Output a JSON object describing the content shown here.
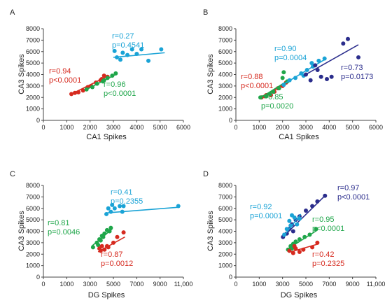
{
  "colors": {
    "red": "#d62a1f",
    "green": "#1fa64a",
    "cyan": "#1aa3d6",
    "navy": "#2b2d8c",
    "axis": "#444444"
  },
  "chart_data": [
    {
      "panel": "A",
      "type": "scatter",
      "xlabel": "CA1 Spikes",
      "ylabel": "CA3 Spikes",
      "xlim": [
        0,
        6000
      ],
      "ylim": [
        0,
        8000
      ],
      "xticks": [
        "0",
        "1000",
        "2000",
        "3000",
        "4000",
        "5000",
        "6000"
      ],
      "yticks": [
        "0",
        "1000",
        "2000",
        "3000",
        "4000",
        "5000",
        "6000",
        "7000",
        "8000"
      ],
      "series": [
        {
          "color": "red",
          "points": [
            [
              1200,
              2300
            ],
            [
              1350,
              2400
            ],
            [
              1500,
              2450
            ],
            [
              1700,
              2600
            ],
            [
              1900,
              2900
            ],
            [
              2050,
              3000
            ],
            [
              2250,
              3300
            ],
            [
              2500,
              3600
            ],
            [
              2600,
              3900
            ],
            [
              2750,
              3800
            ],
            [
              2450,
              3500
            ]
          ],
          "fit": [
            [
              1150,
              2250
            ],
            [
              2800,
              3900
            ]
          ],
          "r": "r=0.94",
          "p": "p<0.0001"
        },
        {
          "color": "green",
          "points": [
            [
              1850,
              2700
            ],
            [
              2100,
              2900
            ],
            [
              2300,
              3200
            ],
            [
              2550,
              3400
            ],
            [
              2750,
              3700
            ],
            [
              2950,
              3900
            ],
            [
              3100,
              4100
            ],
            [
              2600,
              3500
            ]
          ],
          "fit": [
            [
              1800,
              2650
            ],
            [
              3150,
              4050
            ]
          ],
          "r": "r=0.96",
          "p": "p<0.0001"
        },
        {
          "color": "cyan",
          "points": [
            [
              3050,
              6050
            ],
            [
              3300,
              5300
            ],
            [
              3600,
              5700
            ],
            [
              3800,
              6200
            ],
            [
              4000,
              5800
            ],
            [
              4200,
              6200
            ],
            [
              4500,
              5200
            ],
            [
              5050,
              6200
            ],
            [
              3400,
              5900
            ],
            [
              3150,
              5500
            ]
          ],
          "fit": [
            [
              3000,
              5500
            ],
            [
              5200,
              5900
            ]
          ],
          "r": "r=0.27",
          "p": "p=0.4541"
        }
      ]
    },
    {
      "panel": "B",
      "type": "scatter",
      "xlabel": "CA1 Spikes",
      "ylabel": "CA3 Spikes",
      "xlim": [
        0,
        6000
      ],
      "ylim": [
        0,
        8000
      ],
      "xticks": [
        "0",
        "1000",
        "2000",
        "3000",
        "4000",
        "5000",
        "6000"
      ],
      "yticks": [
        "0",
        "1000",
        "2000",
        "3000",
        "4000",
        "5000",
        "6000",
        "7000",
        "8000"
      ],
      "series": [
        {
          "color": "red",
          "points": [
            [
              1100,
              2000
            ],
            [
              1300,
              2200
            ],
            [
              1500,
              2200
            ],
            [
              1650,
              2500
            ],
            [
              1800,
              2800
            ],
            [
              2000,
              3000
            ],
            [
              2150,
              3300
            ],
            [
              1250,
              2100
            ]
          ],
          "fit": [
            [
              1050,
              1950
            ],
            [
              2200,
              3300
            ]
          ],
          "r": "r=0.88",
          "p": "p<0.0001"
        },
        {
          "color": "green",
          "points": [
            [
              1050,
              2000
            ],
            [
              1300,
              2100
            ],
            [
              1600,
              2500
            ],
            [
              2000,
              3700
            ],
            [
              2050,
              4200
            ],
            [
              2200,
              3400
            ],
            [
              1850,
              2800
            ],
            [
              1450,
              2300
            ]
          ],
          "fit": [
            [
              1000,
              1900
            ],
            [
              2250,
              3500
            ]
          ],
          "r": "r=0.85",
          "p": "p=0.0020"
        },
        {
          "color": "cyan",
          "points": [
            [
              2050,
              3100
            ],
            [
              2300,
              3500
            ],
            [
              2550,
              3700
            ],
            [
              2800,
              4100
            ],
            [
              3050,
              4400
            ],
            [
              3300,
              4700
            ],
            [
              3550,
              5200
            ],
            [
              3800,
              5400
            ],
            [
              3250,
              5000
            ],
            [
              2900,
              3900
            ]
          ],
          "fit": [
            [
              2000,
              3100
            ],
            [
              3800,
              5300
            ]
          ],
          "r": "r=0.90",
          "p": "p=0.0004"
        },
        {
          "color": "navy",
          "points": [
            [
              3000,
              4000
            ],
            [
              3200,
              3500
            ],
            [
              3400,
              4800
            ],
            [
              3650,
              3800
            ],
            [
              3900,
              3600
            ],
            [
              4100,
              3800
            ],
            [
              4600,
              6700
            ],
            [
              4800,
              7100
            ],
            [
              5250,
              5500
            ],
            [
              3500,
              4400
            ]
          ],
          "fit": [
            [
              2900,
              3900
            ],
            [
              5250,
              6600
            ]
          ],
          "r": "r=0.73",
          "p": "p=0.0173"
        }
      ]
    },
    {
      "panel": "C",
      "type": "scatter",
      "xlabel": "DG Spikes",
      "ylabel": "CA3 Spikes",
      "xlim": [
        0,
        11000
      ],
      "ylim": [
        0,
        8000
      ],
      "xticks": [
        "0",
        "1000",
        "3000",
        "5000",
        "7000",
        "9000",
        "11,000"
      ],
      "yticks": [
        "0",
        "1000",
        "2000",
        "3000",
        "4000",
        "5000",
        "6000",
        "7000",
        "8000"
      ],
      "series": [
        {
          "color": "green",
          "points": [
            [
              3900,
              2600
            ],
            [
              4200,
              3000
            ],
            [
              4400,
              3300
            ],
            [
              4600,
              3600
            ],
            [
              4800,
              3800
            ],
            [
              5000,
              4100
            ],
            [
              5200,
              4000
            ],
            [
              4300,
              2800
            ],
            [
              4700,
              3500
            ],
            [
              5300,
              4300
            ],
            [
              4500,
              3200
            ]
          ],
          "fit": [
            [
              3800,
              2700
            ],
            [
              5400,
              4200
            ]
          ],
          "r": "r=0.81",
          "p": "p=0.0046"
        },
        {
          "color": "red",
          "points": [
            [
              4400,
              2500
            ],
            [
              4600,
              2700
            ],
            [
              4800,
              2400
            ],
            [
              5100,
              2600
            ],
            [
              5500,
              3000
            ],
            [
              5800,
              3500
            ],
            [
              6300,
              3900
            ],
            [
              5000,
              2700
            ],
            [
              4500,
              2300
            ]
          ],
          "fit": [
            [
              4300,
              2200
            ],
            [
              6400,
              3500
            ]
          ],
          "r": "r=0.87",
          "p": "p=0.0012"
        },
        {
          "color": "cyan",
          "points": [
            [
              4950,
              5500
            ],
            [
              5100,
              6000
            ],
            [
              5300,
              5700
            ],
            [
              5600,
              6000
            ],
            [
              6000,
              6200
            ],
            [
              6200,
              5700
            ],
            [
              6300,
              6200
            ],
            [
              10600,
              6200
            ],
            [
              5400,
              6300
            ]
          ],
          "fit": [
            [
              4900,
              5600
            ],
            [
              10700,
              6100
            ]
          ],
          "r": "r=0.41",
          "p": "p=0.2355"
        }
      ]
    },
    {
      "panel": "D",
      "type": "scatter",
      "xlabel": "DG Spikes",
      "ylabel": "CA3 Spikes",
      "xlim": [
        0,
        11000
      ],
      "ylim": [
        0,
        8000
      ],
      "xticks": [
        "0",
        "1000",
        "3000",
        "5000",
        "7000",
        "9000",
        "11,000"
      ],
      "yticks": [
        "0",
        "1000",
        "2000",
        "3000",
        "4000",
        "5000",
        "6000",
        "7000",
        "8000"
      ],
      "series": [
        {
          "color": "navy",
          "points": [
            [
              3700,
              3500
            ],
            [
              4000,
              3800
            ],
            [
              4200,
              4200
            ],
            [
              4400,
              4600
            ],
            [
              4700,
              5000
            ],
            [
              5000,
              5300
            ],
            [
              5500,
              5800
            ],
            [
              6000,
              6200
            ],
            [
              6400,
              6600
            ],
            [
              7000,
              7100
            ],
            [
              4500,
              4000
            ]
          ],
          "fit": [
            [
              3600,
              3400
            ],
            [
              7000,
              7100
            ]
          ],
          "r": "r=0.97",
          "p": "p<0.0001"
        },
        {
          "color": "cyan",
          "points": [
            [
              3800,
              3700
            ],
            [
              4000,
              4200
            ],
            [
              4200,
              4900
            ],
            [
              4400,
              5400
            ],
            [
              4600,
              5200
            ],
            [
              4800,
              4600
            ],
            [
              5000,
              5100
            ],
            [
              4300,
              4500
            ]
          ],
          "fit": [
            [
              3700,
              3500
            ],
            [
              5100,
              5500
            ]
          ],
          "r": "r=0.92",
          "p": "p=0.0001"
        },
        {
          "color": "green",
          "points": [
            [
              4100,
              2400
            ],
            [
              4300,
              2700
            ],
            [
              4500,
              2900
            ],
            [
              4700,
              3100
            ],
            [
              5000,
              3300
            ],
            [
              5400,
              3500
            ],
            [
              5800,
              3700
            ],
            [
              6300,
              4200
            ],
            [
              4400,
              2500
            ]
          ],
          "fit": [
            [
              4000,
              2400
            ],
            [
              6400,
              4100
            ]
          ],
          "r": "r=0.95",
          "p": "p<0.0001"
        },
        {
          "color": "red",
          "points": [
            [
              4200,
              2300
            ],
            [
              4500,
              2100
            ],
            [
              4700,
              2500
            ],
            [
              5000,
              2200
            ],
            [
              5300,
              2400
            ],
            [
              6000,
              2600
            ],
            [
              6400,
              3000
            ],
            [
              4600,
              2700
            ]
          ],
          "fit": [
            [
              4300,
              2200
            ],
            [
              6500,
              2900
            ]
          ],
          "r": "r=0.42",
          "p": "p=0.2325"
        }
      ]
    }
  ]
}
